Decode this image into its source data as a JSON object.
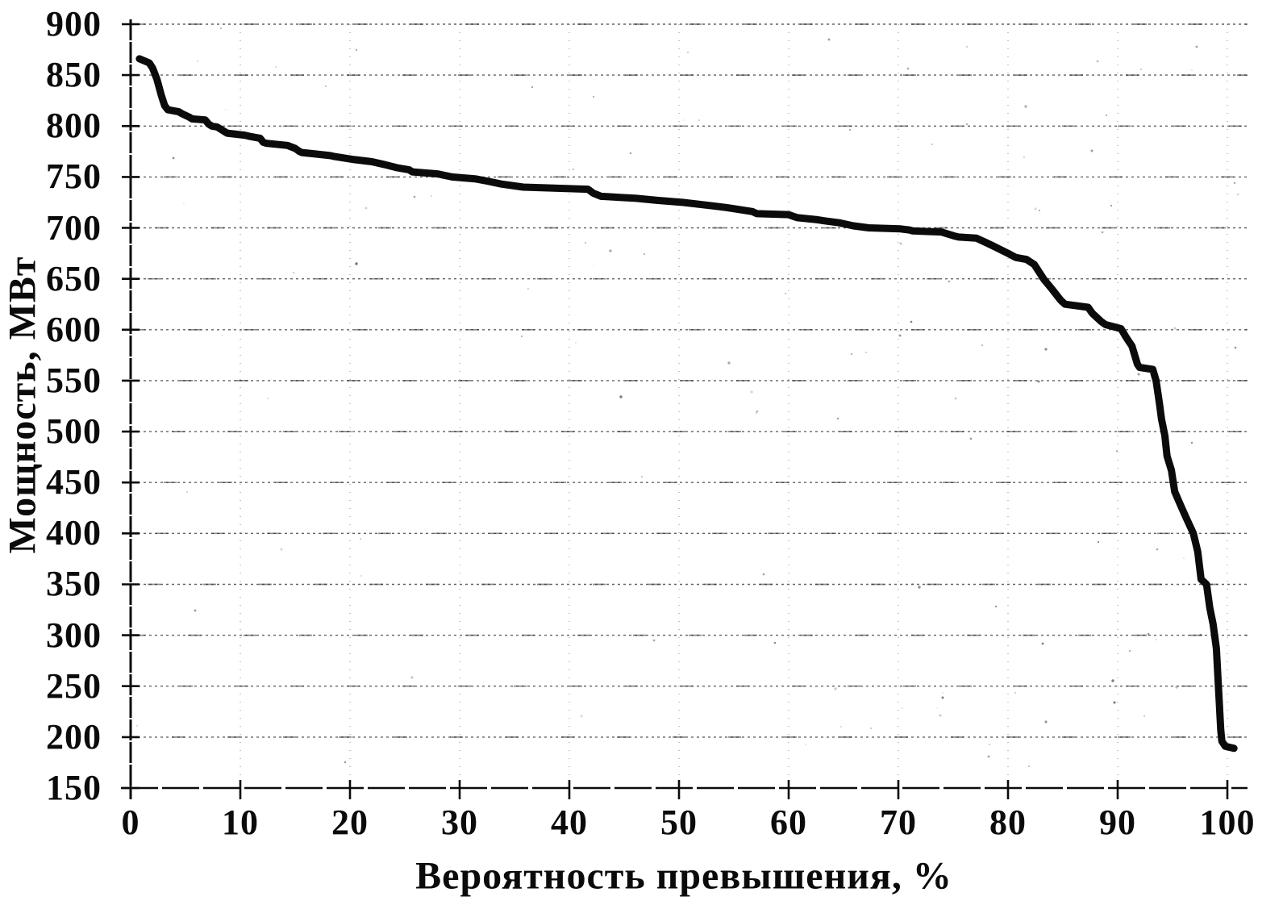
{
  "colors": {
    "background": "#ffffff",
    "ink": "#0b0b0b",
    "grid": "#2e2e2e"
  },
  "chart_data": {
    "type": "line",
    "title": "",
    "xlabel": "Вероятность превышения, %",
    "ylabel": "Мощность, МВт",
    "xlim": [
      0,
      100
    ],
    "ylim": [
      150,
      900
    ],
    "xticks": [
      0,
      10,
      20,
      30,
      40,
      50,
      60,
      70,
      80,
      90,
      100
    ],
    "yticks": [
      900,
      850,
      800,
      750,
      700,
      650,
      600,
      550,
      500,
      450,
      400,
      350,
      300,
      250,
      200,
      150
    ],
    "grid": {
      "horizontal": "dotted",
      "vertical": "faint-dotted"
    },
    "legend": "none",
    "series": [
      {
        "name": "power-exceedance-curve",
        "color": "#0b0b0b",
        "points": [
          [
            0.8,
            866
          ],
          [
            1.7,
            862
          ],
          [
            2.0,
            857
          ],
          [
            2.4,
            846
          ],
          [
            2.8,
            830
          ],
          [
            3.1,
            820
          ],
          [
            3.4,
            816
          ],
          [
            4.4,
            814
          ],
          [
            4.7,
            812
          ],
          [
            5.3,
            809
          ],
          [
            5.6,
            807
          ],
          [
            6.8,
            806
          ],
          [
            7.1,
            802
          ],
          [
            7.4,
            800
          ],
          [
            7.9,
            799
          ],
          [
            8.2,
            797
          ],
          [
            8.8,
            793
          ],
          [
            10.4,
            791
          ],
          [
            10.8,
            790
          ],
          [
            11.8,
            788
          ],
          [
            12.1,
            784
          ],
          [
            12.4,
            783
          ],
          [
            14.3,
            781
          ],
          [
            15.0,
            778
          ],
          [
            15.4,
            775
          ],
          [
            15.6,
            774
          ],
          [
            18.2,
            771
          ],
          [
            18.6,
            770
          ],
          [
            20.4,
            767
          ],
          [
            22.0,
            765
          ],
          [
            23.2,
            762
          ],
          [
            24.3,
            759
          ],
          [
            25.4,
            757
          ],
          [
            25.7,
            755
          ],
          [
            28.0,
            753
          ],
          [
            29.3,
            750
          ],
          [
            31.5,
            748
          ],
          [
            32.5,
            746
          ],
          [
            33.8,
            743
          ],
          [
            35.8,
            740
          ],
          [
            41.7,
            738
          ],
          [
            42.2,
            734
          ],
          [
            42.9,
            731
          ],
          [
            46.1,
            729
          ],
          [
            48.0,
            727
          ],
          [
            50.4,
            725
          ],
          [
            52.8,
            722
          ],
          [
            54.3,
            720
          ],
          [
            56.7,
            716
          ],
          [
            57.1,
            714
          ],
          [
            60.0,
            713
          ],
          [
            60.5,
            711
          ],
          [
            60.8,
            710
          ],
          [
            62.6,
            708
          ],
          [
            63.2,
            707
          ],
          [
            64.6,
            705
          ],
          [
            65.9,
            702
          ],
          [
            67.3,
            700
          ],
          [
            70.2,
            699
          ],
          [
            71.0,
            698
          ],
          [
            71.3,
            697
          ],
          [
            73.9,
            696
          ],
          [
            74.5,
            694
          ],
          [
            75.1,
            692
          ],
          [
            75.5,
            691
          ],
          [
            77.1,
            690
          ],
          [
            77.7,
            687
          ],
          [
            78.5,
            683
          ],
          [
            80.0,
            675
          ],
          [
            80.7,
            671
          ],
          [
            81.7,
            669
          ],
          [
            82.4,
            664
          ],
          [
            83.3,
            649
          ],
          [
            84.0,
            640
          ],
          [
            84.8,
            629
          ],
          [
            85.2,
            625
          ],
          [
            87.3,
            622
          ],
          [
            87.7,
            616
          ],
          [
            88.5,
            608
          ],
          [
            88.9,
            605
          ],
          [
            90.3,
            601
          ],
          [
            90.8,
            592
          ],
          [
            91.3,
            584
          ],
          [
            91.8,
            566
          ],
          [
            92.0,
            563
          ],
          [
            93.2,
            561
          ],
          [
            93.5,
            550
          ],
          [
            93.8,
            528
          ],
          [
            94.0,
            512
          ],
          [
            94.3,
            496
          ],
          [
            94.5,
            476
          ],
          [
            94.9,
            462
          ],
          [
            95.2,
            441
          ],
          [
            95.8,
            426
          ],
          [
            96.3,
            414
          ],
          [
            96.9,
            400
          ],
          [
            97.3,
            382
          ],
          [
            97.6,
            355
          ],
          [
            98.1,
            350
          ],
          [
            98.4,
            327
          ],
          [
            98.7,
            311
          ],
          [
            99.0,
            287
          ],
          [
            99.2,
            247
          ],
          [
            99.4,
            207
          ],
          [
            99.5,
            196
          ],
          [
            99.8,
            191
          ],
          [
            100.6,
            189
          ]
        ]
      }
    ]
  }
}
